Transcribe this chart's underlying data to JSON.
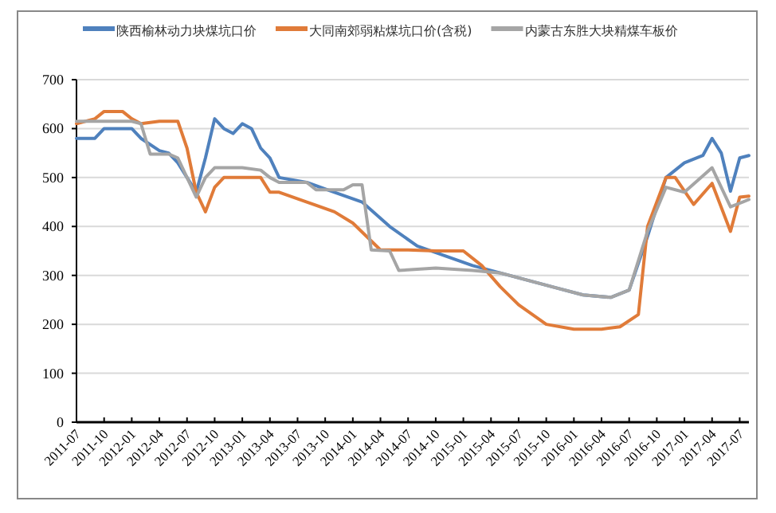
{
  "chart_data": {
    "type": "line",
    "legend": "top",
    "grid": "y",
    "marker": "none",
    "line_style": "solid",
    "xlim": [
      "2011-07",
      "2017-08"
    ],
    "ylim": [
      0,
      700
    ],
    "yticks": [
      0,
      100,
      200,
      300,
      400,
      500,
      600,
      700
    ],
    "xticks": [
      "2011-07",
      "2011-10",
      "2012-01",
      "2012-04",
      "2012-07",
      "2012-10",
      "2013-01",
      "2013-04",
      "2013-07",
      "2013-10",
      "2014-01",
      "2014-04",
      "2014-07",
      "2014-10",
      "2015-01",
      "2015-04",
      "2015-07",
      "2015-10",
      "2016-01",
      "2016-04",
      "2016-07",
      "2016-10",
      "2017-01",
      "2017-04",
      "2017-07"
    ],
    "series": [
      {
        "name": "陕西榆林动力块煤坑口价",
        "color": "#4f81bd",
        "x": [
          "2011-07",
          "2011-09",
          "2011-10",
          "2012-01",
          "2012-02",
          "2012-04",
          "2012-05",
          "2012-06",
          "2012-07",
          "2012-08",
          "2012-09",
          "2012-10",
          "2012-11",
          "2012-12",
          "2013-01",
          "2013-02",
          "2013-03",
          "2013-04",
          "2013-05",
          "2013-08",
          "2013-11",
          "2014-02",
          "2014-05",
          "2014-08",
          "2014-11",
          "2015-02",
          "2015-05",
          "2015-08",
          "2015-11",
          "2016-02",
          "2016-05",
          "2016-07",
          "2016-09",
          "2016-11",
          "2017-01",
          "2017-03",
          "2017-04",
          "2017-05",
          "2017-06",
          "2017-07",
          "2017-08"
        ],
        "values": [
          580,
          580,
          600,
          600,
          580,
          555,
          550,
          530,
          500,
          470,
          540,
          620,
          600,
          590,
          610,
          600,
          560,
          540,
          500,
          490,
          470,
          450,
          400,
          360,
          340,
          320,
          305,
          290,
          275,
          260,
          255,
          270,
          380,
          500,
          530,
          545,
          580,
          550,
          472,
          540,
          545
        ]
      },
      {
        "name": "大同南郊弱粘煤坑口价(含税)",
        "color": "#e07b39",
        "x": [
          "2011-07",
          "2011-09",
          "2011-10",
          "2011-12",
          "2012-01",
          "2012-02",
          "2012-04",
          "2012-06",
          "2012-07",
          "2012-08",
          "2012-09",
          "2012-10",
          "2012-11",
          "2013-01",
          "2013-03",
          "2013-04",
          "2013-05",
          "2013-08",
          "2013-11",
          "2014-01",
          "2014-04",
          "2014-07",
          "2014-10",
          "2015-01",
          "2015-03",
          "2015-05",
          "2015-07",
          "2015-10",
          "2016-01",
          "2016-04",
          "2016-06",
          "2016-08",
          "2016-09",
          "2016-11",
          "2016-12",
          "2017-02",
          "2017-04",
          "2017-06",
          "2017-07",
          "2017-08"
        ],
        "values": [
          610,
          620,
          635,
          635,
          620,
          610,
          615,
          615,
          560,
          470,
          430,
          480,
          500,
          500,
          500,
          470,
          470,
          450,
          430,
          407,
          352,
          352,
          350,
          350,
          320,
          277,
          240,
          200,
          190,
          190,
          195,
          220,
          400,
          500,
          500,
          445,
          488,
          390,
          460,
          462
        ]
      },
      {
        "name": "内蒙古东胜大块精煤车板价",
        "color": "#a5a5a5",
        "x": [
          "2011-07",
          "2012-01",
          "2012-02",
          "2012-03",
          "2012-05",
          "2012-06",
          "2012-07",
          "2012-08",
          "2012-09",
          "2012-10",
          "2013-01",
          "2013-03",
          "2013-04",
          "2013-05",
          "2013-08",
          "2013-09",
          "2013-12",
          "2014-01",
          "2014-02",
          "2014-03",
          "2014-05",
          "2014-06",
          "2014-10",
          "2015-02",
          "2015-05",
          "2015-08",
          "2015-11",
          "2016-02",
          "2016-05",
          "2016-07",
          "2016-09",
          "2016-11",
          "2017-01",
          "2017-04",
          "2017-06",
          "2017-08"
        ],
        "values": [
          615,
          615,
          610,
          548,
          548,
          540,
          500,
          460,
          500,
          520,
          520,
          515,
          500,
          490,
          490,
          475,
          475,
          485,
          485,
          352,
          350,
          310,
          315,
          310,
          305,
          290,
          275,
          260,
          255,
          270,
          390,
          480,
          470,
          520,
          440,
          455
        ]
      }
    ]
  }
}
